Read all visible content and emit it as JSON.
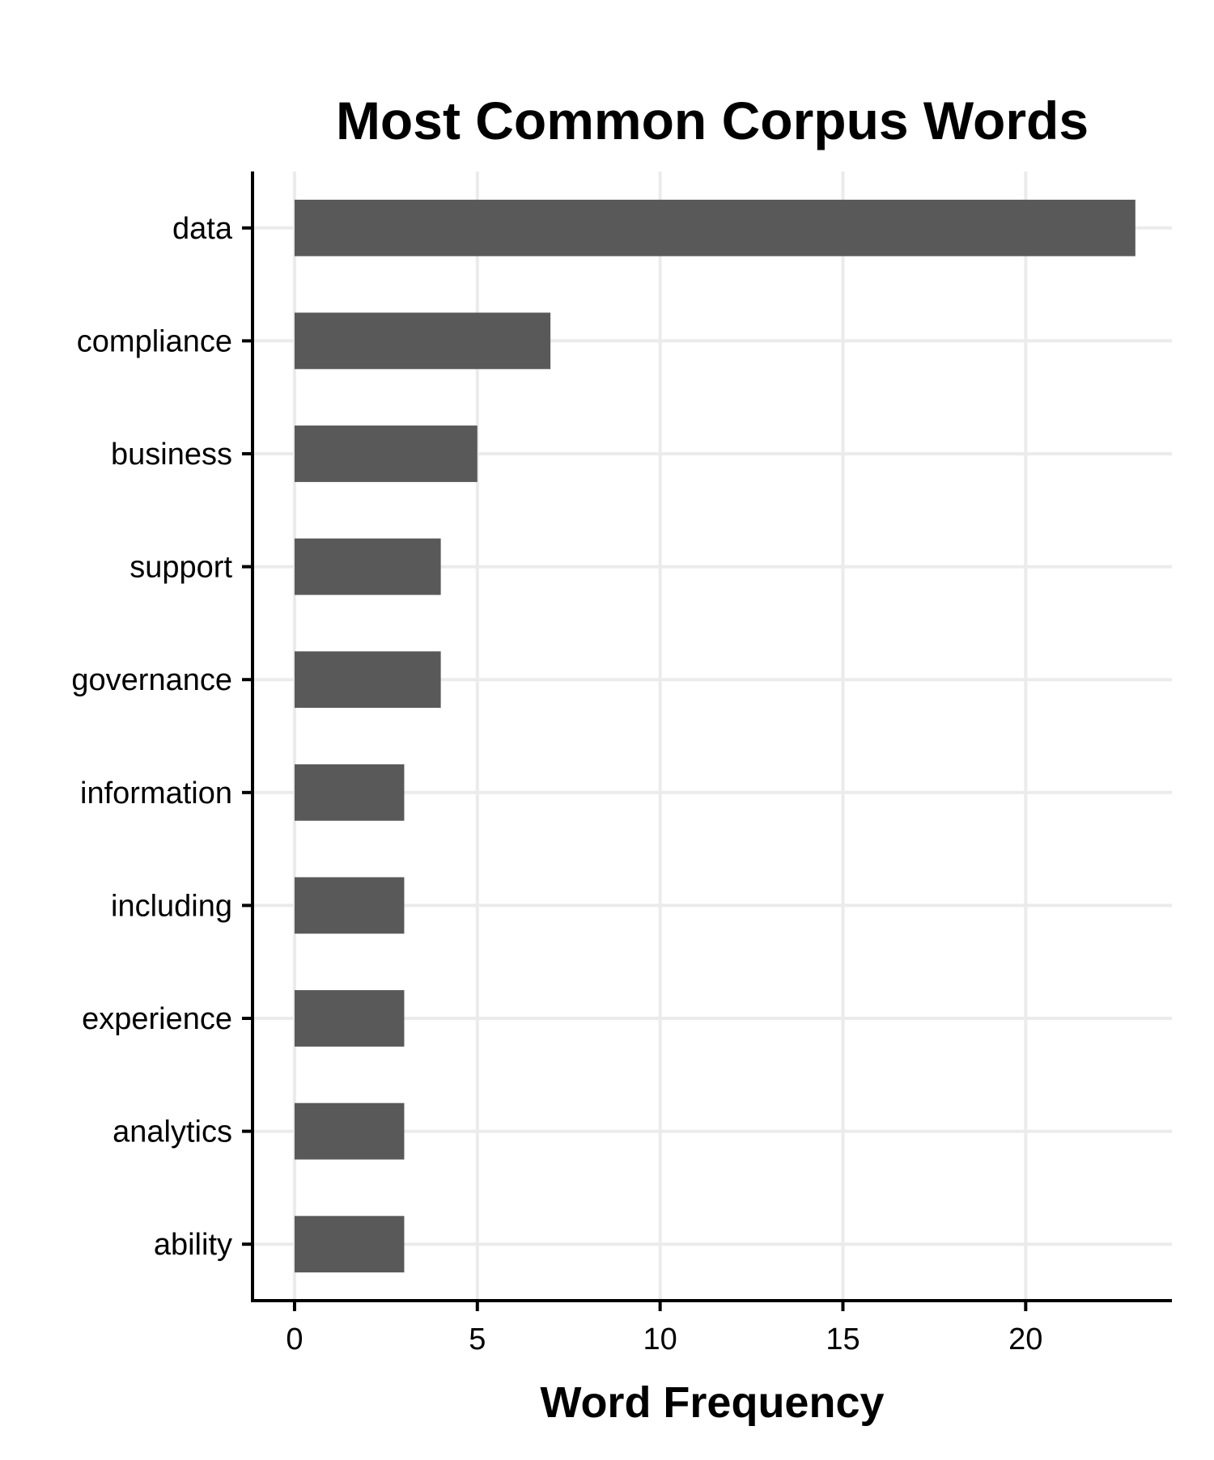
{
  "chart_data": {
    "type": "bar",
    "orientation": "horizontal",
    "title": "Most Common Corpus Words",
    "xlabel": "Word Frequency",
    "ylabel": "",
    "categories": [
      "data",
      "compliance",
      "business",
      "support",
      "governance",
      "information",
      "including",
      "experience",
      "analytics",
      "ability"
    ],
    "values": [
      23,
      7,
      5,
      4,
      4,
      3,
      3,
      3,
      3,
      3
    ],
    "xlim": [
      -1.15,
      24
    ],
    "xticks": [
      0,
      5,
      10,
      15,
      20
    ],
    "xtick_labels": [
      "0",
      "5",
      "10",
      "15",
      "20"
    ],
    "grid": true,
    "legend": "none",
    "colors": {
      "bar": "#595959",
      "grid": "#ebebeb",
      "axis": "#000000"
    }
  }
}
